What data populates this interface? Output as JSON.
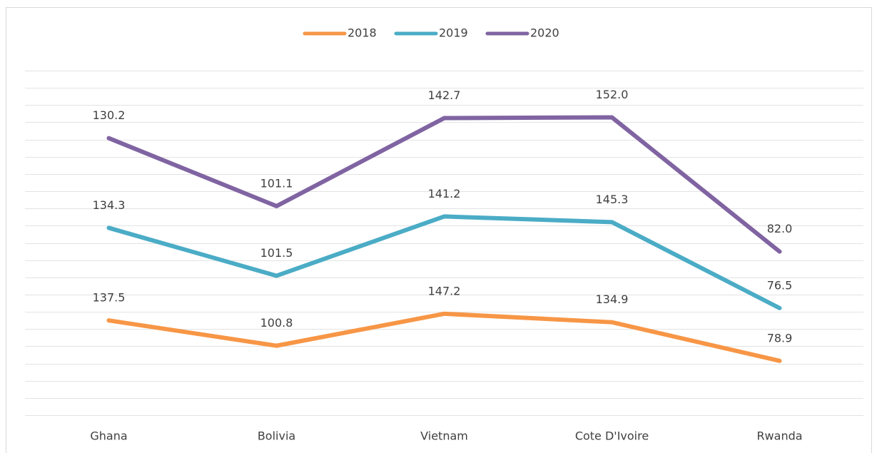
{
  "chart_data": {
    "type": "line",
    "stacked": true,
    "categories": [
      "Ghana",
      "Bolivia",
      "Vietnam",
      "Cote D'Ivoire",
      "Rwanda"
    ],
    "series": [
      {
        "name": "2018",
        "color": "#f79646",
        "values": [
          137.5,
          100.8,
          147.2,
          134.9,
          78.9
        ],
        "value_labels": [
          "137.5",
          "100.8",
          "147.2",
          "134.9",
          "78.9"
        ]
      },
      {
        "name": "2019",
        "color": "#4bacc6",
        "values": [
          134.3,
          101.5,
          141.2,
          145.3,
          76.5
        ],
        "value_labels": [
          "134.3",
          "101.5",
          "141.2",
          "145.3",
          "76.5"
        ]
      },
      {
        "name": "2020",
        "color": "#8064a2",
        "values": [
          130.2,
          101.1,
          142.7,
          152.0,
          82.0
        ],
        "value_labels": [
          "130.2",
          "101.1",
          "142.7",
          "152.0",
          "82.0"
        ]
      }
    ],
    "ylim": [
      0,
      500
    ],
    "yticks": [
      0,
      25,
      50,
      75,
      100,
      125,
      150,
      175,
      200,
      225,
      250,
      275,
      300,
      325,
      350,
      375,
      400,
      425,
      450,
      475,
      500
    ],
    "grid": true,
    "legend": "top"
  }
}
